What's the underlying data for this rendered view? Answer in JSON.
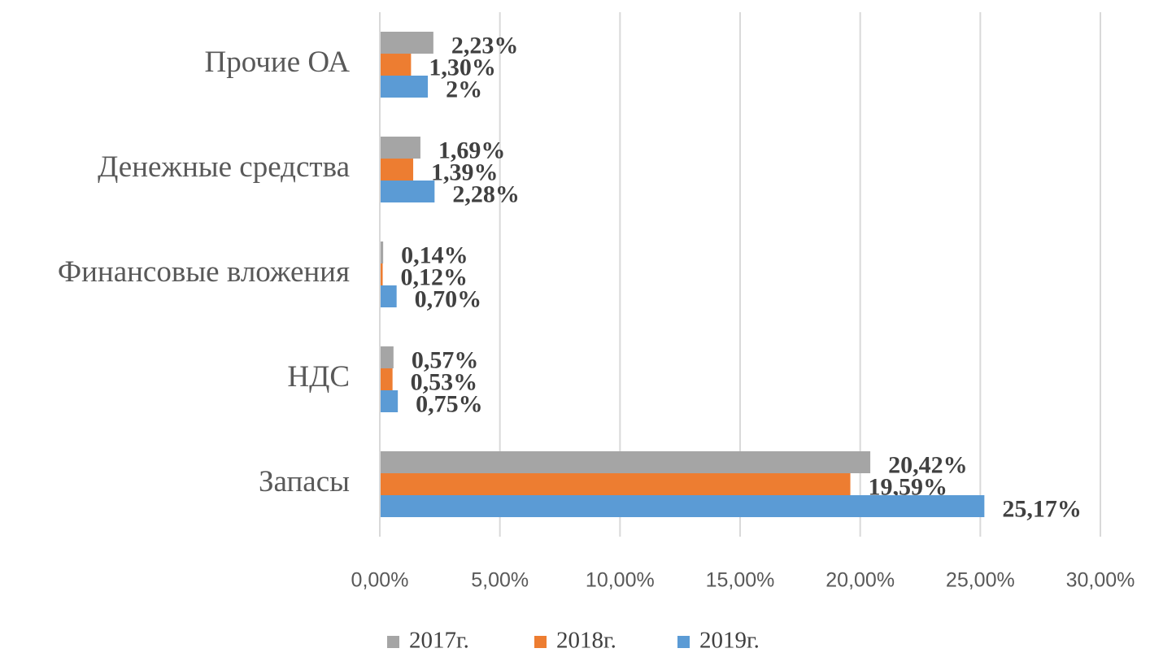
{
  "chart_data": {
    "type": "barh",
    "categories": [
      "Прочие ОА",
      "Денежные средства",
      "Финансовые вложения",
      "НДС",
      "Запасы"
    ],
    "series": [
      {
        "name": "2017г.",
        "color": "#a5a5a5",
        "values": [
          2.23,
          1.69,
          0.14,
          0.57,
          20.42
        ],
        "value_labels": [
          "2,23%",
          "1,69%",
          "0,14%",
          "0,57%",
          "20,42%"
        ]
      },
      {
        "name": "2018г.",
        "color": "#ed7d31",
        "values": [
          1.3,
          1.39,
          0.12,
          0.53,
          19.59
        ],
        "value_labels": [
          "1,30%",
          "1,39%",
          "0,12%",
          "0,53%",
          "19,59%"
        ]
      },
      {
        "name": "2019г.",
        "color": "#5b9bd5",
        "values": [
          2,
          2.28,
          0.7,
          0.75,
          25.17
        ],
        "value_labels": [
          "2%",
          "2,28%",
          "0,70%",
          "0,75%",
          "25,17%"
        ]
      }
    ],
    "xlim": [
      0,
      30
    ],
    "xticks": [
      {
        "value": 0,
        "label": "0,00%"
      },
      {
        "value": 5,
        "label": "5,00%"
      },
      {
        "value": 10,
        "label": "10,00%"
      },
      {
        "value": 15,
        "label": "15,00%"
      },
      {
        "value": 20,
        "label": "20,00%"
      },
      {
        "value": 25,
        "label": "25,00%"
      },
      {
        "value": 30,
        "label": "30,00%"
      }
    ],
    "grid": true,
    "legend": "bottom"
  }
}
